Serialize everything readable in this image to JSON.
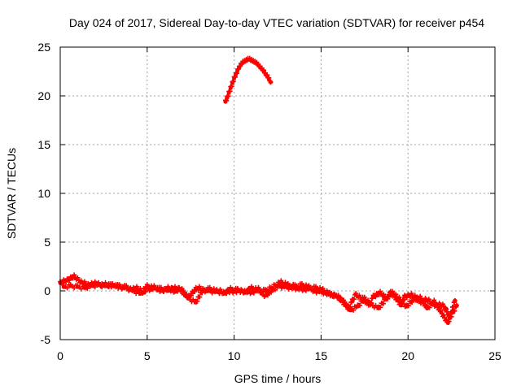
{
  "chart_data": {
    "type": "scatter",
    "title": "Day 024 of 2017, Sidereal Day-to-day VTEC variation (SDTVAR) for receiver p454",
    "xlabel": "GPS time / hours",
    "ylabel": "SDTVAR / TECUs",
    "xlim": [
      0,
      25
    ],
    "ylim": [
      -5,
      25
    ],
    "xticks": [
      0,
      5,
      10,
      15,
      20,
      25
    ],
    "yticks": [
      -5,
      0,
      5,
      10,
      15,
      20,
      25
    ],
    "xtick_labels": [
      "0",
      "5",
      "10",
      "15",
      "20",
      "25"
    ],
    "ytick_labels": [
      "-5",
      "0",
      "5",
      "10",
      "15",
      "20",
      "25"
    ],
    "grid": true,
    "marker": "+",
    "colors": {
      "series": "#ff0000",
      "grid": "#a0a0a0",
      "axis": "#000000"
    },
    "series": [
      {
        "name": "main-trace",
        "x": [
          0.0,
          0.2,
          0.4,
          0.6,
          0.8,
          1.0,
          1.2,
          1.4,
          1.6,
          1.8,
          2.0,
          2.2,
          2.4,
          2.6,
          2.8,
          3.0,
          3.2,
          3.4,
          3.6,
          3.8,
          4.0,
          4.2,
          4.4,
          4.6,
          4.8,
          5.0,
          5.2,
          5.4,
          5.6,
          5.8,
          6.0,
          6.2,
          6.4,
          6.6,
          6.8,
          7.0,
          7.2,
          7.4,
          7.6,
          7.8,
          8.0,
          8.2,
          8.4,
          8.6,
          8.8,
          9.0,
          9.2,
          9.4,
          9.6,
          9.8,
          10.0,
          10.2,
          10.4,
          10.6,
          10.8,
          11.0,
          11.2,
          11.4,
          11.6,
          11.8,
          12.0,
          12.2,
          12.6,
          12.8,
          13.0,
          13.2,
          13.4,
          13.6,
          13.8,
          14.0,
          14.2,
          14.4,
          14.6,
          14.8,
          15.0,
          15.2,
          15.4,
          15.6,
          15.8,
          16.0,
          16.2,
          16.4,
          16.6,
          16.8,
          17.0,
          17.2,
          17.4,
          17.6,
          17.8,
          18.0,
          18.2,
          18.4,
          18.6,
          18.8,
          19.0,
          19.2,
          19.4,
          19.6,
          19.8,
          20.0,
          20.2,
          20.4,
          20.6,
          20.8,
          21.0,
          21.2,
          21.4,
          21.6,
          21.8,
          22.0,
          22.2,
          22.4,
          22.6,
          22.8
        ],
        "y": [
          0.8,
          1.0,
          1.1,
          1.3,
          1.5,
          1.2,
          0.9,
          0.8,
          0.6,
          0.7,
          0.8,
          0.7,
          0.6,
          0.7,
          0.6,
          0.5,
          0.5,
          0.4,
          0.3,
          0.3,
          0.1,
          0.2,
          0.3,
          0.1,
          -0.2,
          0.3,
          0.1,
          0.4,
          0.2,
          0.0,
          0.1,
          0.3,
          0.2,
          -0.1,
          0.2,
          0.0,
          -0.5,
          -0.6,
          -0.2,
          0.2,
          0.3,
          0.1,
          0.0,
          0.0,
          -0.1,
          -0.1,
          0.0,
          -0.2,
          -0.1,
          0.0,
          -0.1,
          0.0,
          0.0,
          -0.1,
          0.0,
          -0.2,
          0.0,
          0.2,
          -0.3,
          -0.5,
          -0.2,
          0.1,
          0.5,
          0.4,
          0.4,
          0.3,
          0.4,
          0.2,
          0.3,
          0.1,
          0.2,
          0.2,
          0.0,
          -0.1,
          -0.1,
          -0.2,
          -0.3,
          -0.4,
          -0.5,
          -0.6,
          -1.0,
          -1.5,
          -1.8,
          -1.0,
          -0.4,
          -0.6,
          -0.8,
          -1.2,
          -1.4,
          -0.6,
          -0.4,
          -0.2,
          -0.5,
          -0.7,
          -0.2,
          -0.5,
          -1.0,
          -1.5,
          -0.6,
          -0.5,
          -0.4,
          -0.6,
          -1.0,
          -1.2,
          -0.9,
          -1.0,
          -1.3,
          -1.5,
          -1.4,
          -1.5,
          -2.0,
          -2.8,
          -2.2,
          -1.5
        ]
      },
      {
        "name": "secondary-trace",
        "x": [
          0.2,
          0.6,
          1.0,
          1.4,
          1.8,
          2.2,
          2.6,
          3.0,
          3.4,
          3.8,
          4.2,
          4.6,
          5.0,
          5.4,
          5.8,
          6.2,
          6.6,
          7.0,
          7.4,
          7.8,
          8.2,
          8.6,
          9.0,
          9.4,
          9.8,
          10.2,
          10.6,
          11.0,
          11.4,
          11.8,
          12.7,
          13.1,
          13.5,
          13.9,
          14.3,
          14.7,
          15.1,
          15.5,
          15.9,
          16.3,
          16.7,
          17.1,
          17.5,
          17.9,
          18.3,
          18.7,
          19.1,
          19.5,
          19.9,
          20.3,
          20.7,
          21.1,
          21.5,
          21.9,
          22.3,
          22.7
        ],
        "y": [
          0.4,
          0.5,
          0.4,
          0.3,
          0.5,
          0.6,
          0.5,
          0.6,
          0.5,
          0.4,
          0.0,
          -0.3,
          0.5,
          0.3,
          0.2,
          0.0,
          0.3,
          0.1,
          -0.8,
          -1.2,
          0.1,
          0.2,
          0.0,
          -0.3,
          0.2,
          0.1,
          -0.2,
          0.3,
          0.1,
          0.0,
          0.9,
          0.6,
          0.5,
          0.6,
          0.4,
          0.3,
          0.1,
          -0.3,
          -0.6,
          -1.1,
          -2.0,
          -1.6,
          -0.8,
          -1.4,
          -1.8,
          -0.9,
          -0.2,
          -0.8,
          -1.6,
          -0.9,
          -0.7,
          -1.8,
          -1.1,
          -2.2,
          -3.3,
          -1.0
        ]
      },
      {
        "name": "arc-trace",
        "x": [
          9.5,
          9.6,
          9.7,
          9.8,
          9.9,
          10.0,
          10.1,
          10.2,
          10.3,
          10.4,
          10.5,
          10.6,
          10.7,
          10.8,
          10.9,
          11.0,
          11.1,
          11.2,
          11.3,
          11.4,
          11.5,
          11.6,
          11.7,
          11.8,
          11.9,
          12.0,
          12.1
        ],
        "y": [
          19.4,
          19.8,
          20.3,
          20.8,
          21.3,
          21.8,
          22.2,
          22.6,
          22.9,
          23.2,
          23.4,
          23.5,
          23.6,
          23.7,
          23.7,
          23.6,
          23.5,
          23.4,
          23.3,
          23.1,
          22.9,
          22.7,
          22.5,
          22.2,
          22.0,
          21.7,
          21.4
        ]
      }
    ]
  }
}
